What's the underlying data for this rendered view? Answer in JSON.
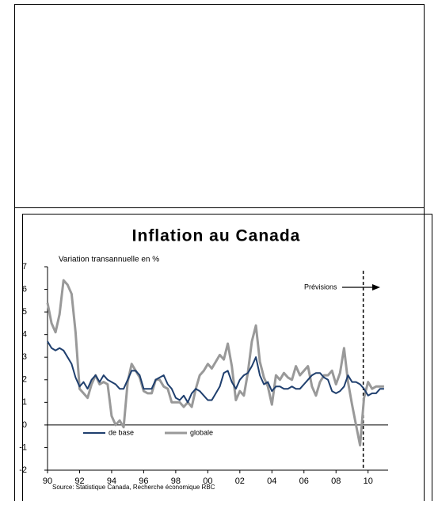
{
  "chart_data": {
    "type": "line",
    "title": "Inflation au Canada",
    "subtitle": "Variation transannuelle en %",
    "source": "Source: Statistique Canada, Recherche économique RBC",
    "annotation": "Prévisions",
    "forecast_start": 2009.7,
    "legend": "lower left",
    "x": [
      1990,
      1990.25,
      1990.5,
      1990.75,
      1991,
      1991.25,
      1991.5,
      1991.75,
      1992,
      1992.25,
      1992.5,
      1992.75,
      1993,
      1993.25,
      1993.5,
      1993.75,
      1994,
      1994.25,
      1994.5,
      1994.75,
      1995,
      1995.25,
      1995.5,
      1995.75,
      1996,
      1996.25,
      1996.5,
      1996.75,
      1997,
      1997.25,
      1997.5,
      1997.75,
      1998,
      1998.25,
      1998.5,
      1998.75,
      1999,
      1999.25,
      1999.5,
      1999.75,
      2000,
      2000.25,
      2000.5,
      2000.75,
      2001,
      2001.25,
      2001.5,
      2001.75,
      2002,
      2002.25,
      2002.5,
      2002.75,
      2003,
      2003.25,
      2003.5,
      2003.75,
      2004,
      2004.25,
      2004.5,
      2004.75,
      2005,
      2005.25,
      2005.5,
      2005.75,
      2006,
      2006.25,
      2006.5,
      2006.75,
      2007,
      2007.25,
      2007.5,
      2007.75,
      2008,
      2008.25,
      2008.5,
      2008.75,
      2009,
      2009.25,
      2009.5,
      2009.75,
      2010,
      2010.25,
      2010.5,
      2010.75,
      2011
    ],
    "series": [
      {
        "name": "de base",
        "color": "#1f3f6e",
        "width": 2,
        "values": [
          3.7,
          3.4,
          3.3,
          3.4,
          3.3,
          3.0,
          2.7,
          2.1,
          1.7,
          1.9,
          1.6,
          2.0,
          2.2,
          1.9,
          2.2,
          2.0,
          1.9,
          1.8,
          1.6,
          1.6,
          2.0,
          2.4,
          2.4,
          2.2,
          1.6,
          1.6,
          1.6,
          2.0,
          2.1,
          2.2,
          1.8,
          1.6,
          1.2,
          1.1,
          1.3,
          1.0,
          1.4,
          1.6,
          1.5,
          1.3,
          1.1,
          1.1,
          1.4,
          1.7,
          2.3,
          2.4,
          1.9,
          1.6,
          2.0,
          2.2,
          2.3,
          2.6,
          3.0,
          2.2,
          1.8,
          1.9,
          1.5,
          1.7,
          1.7,
          1.6,
          1.6,
          1.7,
          1.6,
          1.6,
          1.8,
          2.0,
          2.2,
          2.3,
          2.3,
          2.1,
          2.0,
          1.5,
          1.4,
          1.5,
          1.7,
          2.2,
          1.9,
          1.9,
          1.8,
          1.6,
          1.3,
          1.4,
          1.4,
          1.6,
          1.6
        ]
      },
      {
        "name": "globale",
        "color": "#999999",
        "width": 3,
        "values": [
          5.4,
          4.5,
          4.1,
          4.9,
          6.4,
          6.2,
          5.8,
          4.1,
          1.6,
          1.4,
          1.2,
          1.8,
          2.2,
          1.8,
          1.9,
          1.8,
          0.4,
          0.0,
          0.2,
          -0.1,
          1.9,
          2.7,
          2.4,
          2.1,
          1.5,
          1.4,
          1.4,
          2.0,
          2.0,
          1.7,
          1.6,
          1.0,
          1.0,
          1.0,
          0.8,
          1.0,
          0.8,
          1.6,
          2.2,
          2.4,
          2.7,
          2.5,
          2.8,
          3.1,
          2.9,
          3.6,
          2.6,
          1.1,
          1.5,
          1.3,
          2.3,
          3.7,
          4.4,
          2.8,
          2.1,
          1.7,
          0.9,
          2.2,
          2.0,
          2.3,
          2.1,
          2.0,
          2.6,
          2.2,
          2.4,
          2.6,
          1.7,
          1.3,
          1.9,
          2.2,
          2.2,
          2.4,
          1.8,
          2.3,
          3.4,
          1.9,
          0.9,
          0.0,
          -0.9,
          1.2,
          1.9,
          1.6,
          1.7,
          1.7,
          1.7
        ]
      }
    ],
    "xlim": [
      1990,
      2011.25
    ],
    "ylim": [
      -2,
      7
    ],
    "yticks": [
      -2,
      -1,
      0,
      1,
      2,
      3,
      4,
      5,
      6,
      7
    ],
    "xticks": [
      {
        "value": 1990,
        "label": "90"
      },
      {
        "value": 1992,
        "label": "92"
      },
      {
        "value": 1994,
        "label": "94"
      },
      {
        "value": 1996,
        "label": "96"
      },
      {
        "value": 1998,
        "label": "98"
      },
      {
        "value": 2000,
        "label": "00"
      },
      {
        "value": 2002,
        "label": "02"
      },
      {
        "value": 2004,
        "label": "04"
      },
      {
        "value": 2006,
        "label": "06"
      },
      {
        "value": 2008,
        "label": "08"
      },
      {
        "value": 2010,
        "label": "10"
      }
    ]
  }
}
